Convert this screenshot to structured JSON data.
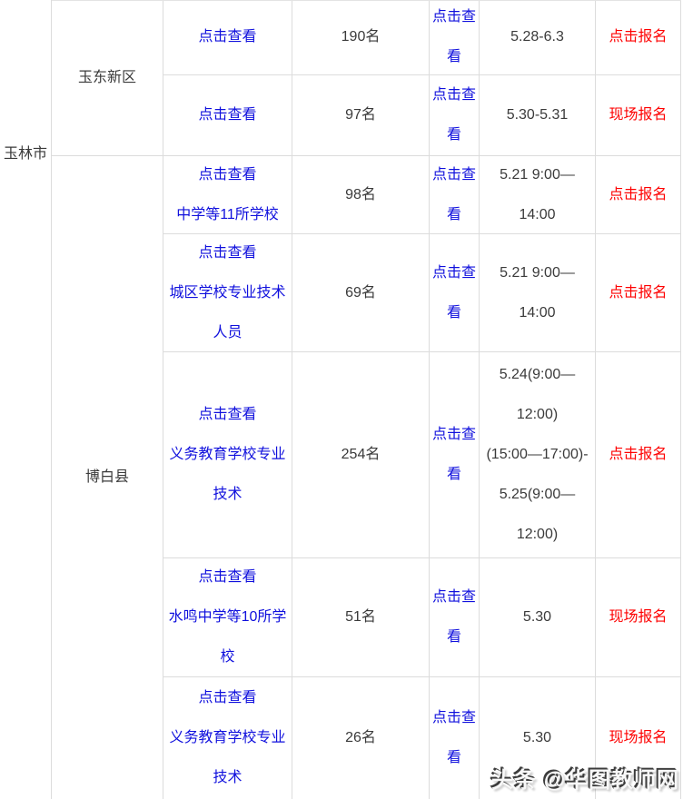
{
  "city": "玉林市",
  "districts": {
    "first": "玉东新区",
    "second": "博白县"
  },
  "rows": [
    {
      "detail": "点击查看",
      "count": "190名",
      "view": "点击查\n看",
      "date": "5.28-6.3",
      "signup": "点击报名"
    },
    {
      "detail": "点击查看",
      "count": "97名",
      "view": "点击查\n看",
      "date": "5.30-5.31",
      "signup": "现场报名"
    },
    {
      "detail": "点击查看\n中学等11所学校",
      "count": "98名",
      "view": "点击查\n看",
      "date": "5.21 9:00—\n14:00",
      "signup": "点击报名"
    },
    {
      "detail": "点击查看\n城区学校专业技术\n人员",
      "count": "69名",
      "view": "点击查\n看",
      "date": "5.21 9:00—\n14:00",
      "signup": "点击报名"
    },
    {
      "detail": "点击查看\n义务教育学校专业\n技术",
      "count": "254名",
      "view": "点击查\n看",
      "date": "5.24(9:00—\n12:00)\n(15:00—17:00)-\n5.25(9:00—\n12:00)",
      "signup": "点击报名"
    },
    {
      "detail": "点击查看\n水鸣中学等10所学\n校",
      "count": "51名",
      "view": "点击查\n看",
      "date": "5.30",
      "signup": "现场报名"
    },
    {
      "detail": "点击查看\n义务教育学校专业\n技术",
      "count": "26名",
      "view": "点击查\n看",
      "date": "5.30",
      "signup": "现场报名"
    }
  ],
  "watermark": "头条 @华图教师网",
  "colors": {
    "link_blue": "#1010dd",
    "action_red": "#fe0202",
    "text": "#3a3a3a",
    "border": "#dcdcdc"
  }
}
